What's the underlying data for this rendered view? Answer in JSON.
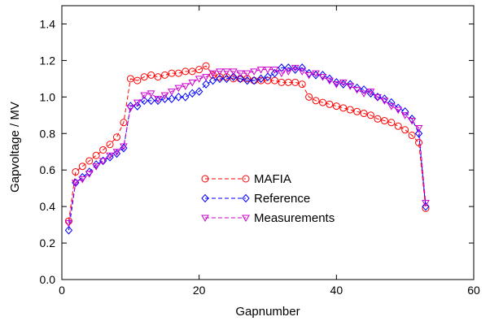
{
  "chart_data": {
    "type": "line",
    "title": "",
    "xlabel": "Gapnumber",
    "ylabel": "Gapvoltage / MV",
    "xlim": [
      0,
      60
    ],
    "ylim": [
      0,
      1.5
    ],
    "xticks": [
      0,
      20,
      40,
      60
    ],
    "yticks": [
      0.0,
      0.2,
      0.4,
      0.6,
      0.8,
      1.0,
      1.2,
      1.4
    ],
    "xtick_labels": [
      "0",
      "20",
      "40",
      "60"
    ],
    "ytick_labels": [
      "0.0",
      "0.2",
      "0.4",
      "0.6",
      "0.8",
      "1.0",
      "1.2",
      "1.4"
    ],
    "grid": false,
    "legend_position": "center",
    "series": [
      {
        "name": "MAFIA",
        "color": "#ff0000",
        "marker": "circle",
        "line_style": "dashed",
        "x": [
          1,
          2,
          3,
          4,
          5,
          6,
          7,
          8,
          9,
          10,
          11,
          12,
          13,
          14,
          15,
          16,
          17,
          18,
          19,
          20,
          21,
          22,
          23,
          24,
          25,
          26,
          27,
          28,
          29,
          30,
          31,
          32,
          33,
          34,
          35,
          36,
          37,
          38,
          39,
          40,
          41,
          42,
          43,
          44,
          45,
          46,
          47,
          48,
          49,
          50,
          51,
          52,
          53
        ],
        "y": [
          0.32,
          0.59,
          0.62,
          0.65,
          0.68,
          0.71,
          0.74,
          0.78,
          0.86,
          1.1,
          1.09,
          1.11,
          1.12,
          1.11,
          1.12,
          1.13,
          1.13,
          1.14,
          1.14,
          1.15,
          1.17,
          1.12,
          1.11,
          1.11,
          1.1,
          1.1,
          1.1,
          1.09,
          1.09,
          1.09,
          1.09,
          1.08,
          1.08,
          1.08,
          1.07,
          1.0,
          0.98,
          0.97,
          0.96,
          0.95,
          0.94,
          0.93,
          0.92,
          0.91,
          0.9,
          0.88,
          0.87,
          0.86,
          0.84,
          0.82,
          0.79,
          0.75,
          0.39
        ]
      },
      {
        "name": "Reference",
        "color": "#0000ff",
        "marker": "diamond",
        "line_style": "dashed",
        "x": [
          1,
          2,
          3,
          4,
          5,
          6,
          7,
          8,
          9,
          10,
          11,
          12,
          13,
          14,
          15,
          16,
          17,
          18,
          19,
          20,
          21,
          22,
          23,
          24,
          25,
          26,
          27,
          28,
          29,
          30,
          31,
          32,
          33,
          34,
          35,
          36,
          37,
          38,
          39,
          40,
          41,
          42,
          43,
          44,
          45,
          46,
          47,
          48,
          49,
          50,
          51,
          52,
          53
        ],
        "y": [
          0.27,
          0.53,
          0.56,
          0.59,
          0.63,
          0.65,
          0.67,
          0.69,
          0.72,
          0.95,
          0.95,
          0.98,
          0.98,
          0.98,
          0.99,
          0.99,
          1.0,
          1.0,
          1.02,
          1.03,
          1.07,
          1.09,
          1.1,
          1.1,
          1.11,
          1.1,
          1.09,
          1.09,
          1.1,
          1.11,
          1.13,
          1.16,
          1.16,
          1.15,
          1.16,
          1.13,
          1.12,
          1.12,
          1.1,
          1.08,
          1.07,
          1.07,
          1.05,
          1.04,
          1.02,
          1.0,
          0.99,
          0.97,
          0.94,
          0.92,
          0.88,
          0.8,
          0.4
        ]
      },
      {
        "name": "Measurements",
        "color": "#cc00cc",
        "marker": "triangle-down",
        "line_style": "dashed",
        "x": [
          1,
          2,
          3,
          4,
          5,
          6,
          7,
          8,
          9,
          10,
          11,
          12,
          13,
          14,
          15,
          16,
          17,
          18,
          19,
          20,
          21,
          22,
          23,
          24,
          25,
          26,
          27,
          28,
          29,
          30,
          31,
          32,
          33,
          34,
          35,
          36,
          37,
          38,
          39,
          40,
          41,
          42,
          43,
          44,
          45,
          46,
          47,
          48,
          49,
          50,
          51,
          52,
          53
        ],
        "y": [
          0.31,
          0.53,
          0.55,
          0.58,
          0.62,
          0.65,
          0.68,
          0.7,
          0.73,
          0.94,
          0.97,
          1.01,
          1.02,
          0.99,
          1.01,
          1.03,
          1.05,
          1.06,
          1.08,
          1.1,
          1.11,
          1.13,
          1.14,
          1.14,
          1.14,
          1.13,
          1.13,
          1.14,
          1.15,
          1.15,
          1.15,
          1.13,
          1.14,
          1.16,
          1.14,
          1.12,
          1.13,
          1.11,
          1.09,
          1.07,
          1.08,
          1.06,
          1.04,
          1.02,
          1.03,
          1.0,
          0.98,
          0.95,
          0.93,
          0.9,
          0.87,
          0.83,
          0.42
        ]
      }
    ]
  }
}
